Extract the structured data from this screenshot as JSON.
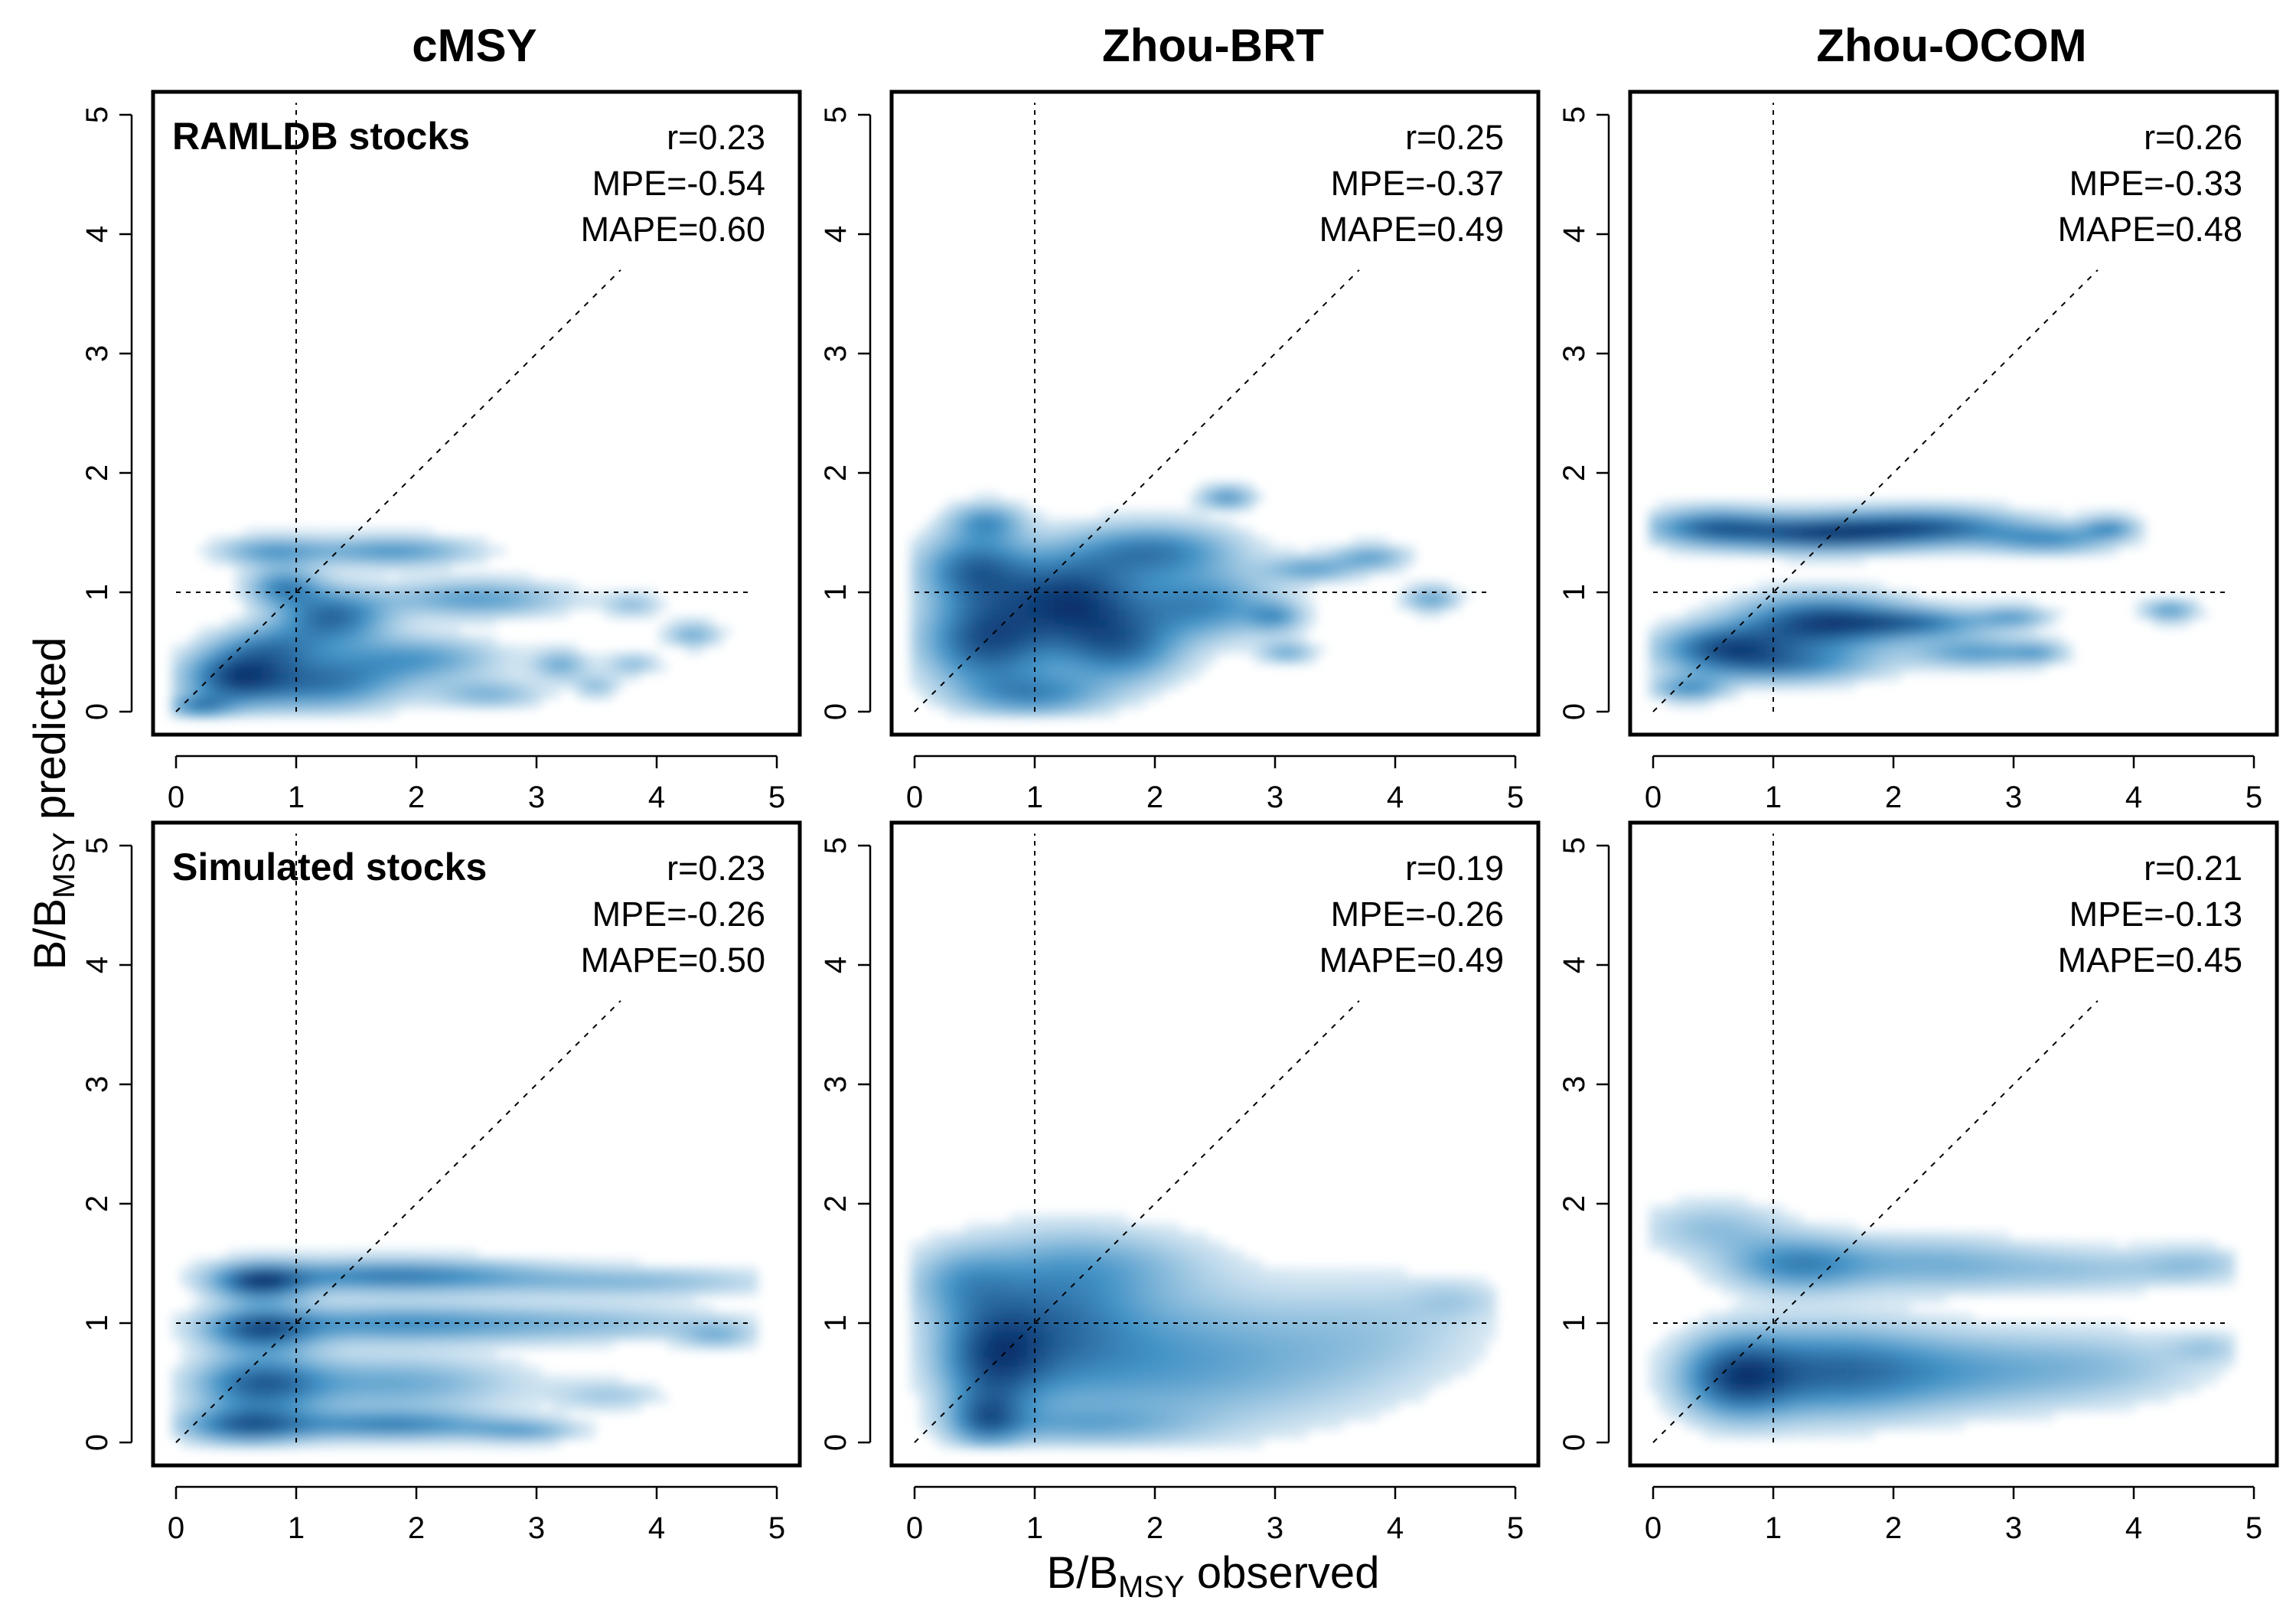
{
  "figure": {
    "y_label": {
      "main": "B/B",
      "sub": "MSY",
      "rest": " predicted"
    },
    "x_label": {
      "main": "B/B",
      "sub": "MSY",
      "rest": " observed"
    },
    "color_scale": [
      "#ffffff",
      "#08306b"
    ]
  },
  "chart_data": [
    {
      "type": "heatmap",
      "column_title": "cMSY",
      "row_label": "RAMLDB stocks",
      "xlim": [
        0,
        5
      ],
      "ylim": [
        0,
        5
      ],
      "ticks": [
        0,
        1,
        2,
        3,
        4,
        5
      ],
      "reference_lines": {
        "x": 1,
        "y": 1,
        "identity": true
      },
      "stats": [
        "r=0.23",
        "MPE=-0.54",
        "MAPE=0.60"
      ],
      "density_clusters": [
        {
          "x": 0.5,
          "y": 0.3,
          "sx": 0.28,
          "sy": 0.15,
          "w": 1.0
        },
        {
          "x": 1.2,
          "y": 0.25,
          "sx": 0.45,
          "sy": 0.15,
          "w": 0.8
        },
        {
          "x": 1.3,
          "y": 0.8,
          "sx": 0.3,
          "sy": 0.15,
          "w": 0.9
        },
        {
          "x": 0.9,
          "y": 1.05,
          "sx": 0.2,
          "sy": 0.1,
          "w": 0.7
        },
        {
          "x": 0.8,
          "y": 0.55,
          "sx": 0.3,
          "sy": 0.12,
          "w": 0.6
        },
        {
          "x": 1.8,
          "y": 1.35,
          "sx": 0.45,
          "sy": 0.08,
          "w": 0.6
        },
        {
          "x": 0.8,
          "y": 1.35,
          "sx": 0.3,
          "sy": 0.08,
          "w": 0.55
        },
        {
          "x": 2.5,
          "y": 0.95,
          "sx": 0.5,
          "sy": 0.1,
          "w": 0.55
        },
        {
          "x": 2.0,
          "y": 0.45,
          "sx": 0.45,
          "sy": 0.12,
          "w": 0.55
        },
        {
          "x": 2.6,
          "y": 0.15,
          "sx": 0.3,
          "sy": 0.08,
          "w": 0.4
        },
        {
          "x": 3.2,
          "y": 0.4,
          "sx": 0.15,
          "sy": 0.08,
          "w": 0.45
        },
        {
          "x": 3.5,
          "y": 0.22,
          "sx": 0.12,
          "sy": 0.06,
          "w": 0.35
        },
        {
          "x": 3.8,
          "y": 0.4,
          "sx": 0.15,
          "sy": 0.06,
          "w": 0.35
        },
        {
          "x": 3.8,
          "y": 0.9,
          "sx": 0.15,
          "sy": 0.06,
          "w": 0.35
        },
        {
          "x": 4.3,
          "y": 0.65,
          "sx": 0.15,
          "sy": 0.07,
          "w": 0.45
        },
        {
          "x": 0.2,
          "y": 0.05,
          "sx": 0.18,
          "sy": 0.06,
          "w": 0.7
        }
      ]
    },
    {
      "type": "heatmap",
      "column_title": "Zhou-BRT",
      "row_label": "",
      "xlim": [
        0,
        5
      ],
      "ylim": [
        0,
        5
      ],
      "ticks": [
        0,
        1,
        2,
        3,
        4,
        5
      ],
      "reference_lines": {
        "x": 1,
        "y": 1,
        "identity": true
      },
      "stats": [
        "r=0.25",
        "MPE=-0.37",
        "MAPE=0.49"
      ],
      "density_clusters": [
        {
          "x": 1.3,
          "y": 0.95,
          "sx": 0.4,
          "sy": 0.25,
          "w": 1.0
        },
        {
          "x": 0.6,
          "y": 0.6,
          "sx": 0.35,
          "sy": 0.25,
          "w": 0.9
        },
        {
          "x": 0.5,
          "y": 1.2,
          "sx": 0.3,
          "sy": 0.2,
          "w": 0.75
        },
        {
          "x": 0.6,
          "y": 1.6,
          "sx": 0.2,
          "sy": 0.1,
          "w": 0.5
        },
        {
          "x": 1.7,
          "y": 0.55,
          "sx": 0.35,
          "sy": 0.2,
          "w": 0.7
        },
        {
          "x": 2.0,
          "y": 1.35,
          "sx": 0.45,
          "sy": 0.15,
          "w": 0.65
        },
        {
          "x": 2.6,
          "y": 1.8,
          "sx": 0.15,
          "sy": 0.06,
          "w": 0.55
        },
        {
          "x": 2.4,
          "y": 0.9,
          "sx": 0.4,
          "sy": 0.18,
          "w": 0.6
        },
        {
          "x": 1.0,
          "y": 0.15,
          "sx": 0.4,
          "sy": 0.12,
          "w": 0.55
        },
        {
          "x": 3.0,
          "y": 0.8,
          "sx": 0.15,
          "sy": 0.08,
          "w": 0.45
        },
        {
          "x": 3.1,
          "y": 0.5,
          "sx": 0.15,
          "sy": 0.06,
          "w": 0.4
        },
        {
          "x": 3.3,
          "y": 1.2,
          "sx": 0.25,
          "sy": 0.07,
          "w": 0.45
        },
        {
          "x": 3.8,
          "y": 1.3,
          "sx": 0.2,
          "sy": 0.07,
          "w": 0.45
        },
        {
          "x": 4.3,
          "y": 0.95,
          "sx": 0.15,
          "sy": 0.07,
          "w": 0.45
        }
      ]
    },
    {
      "type": "heatmap",
      "column_title": "Zhou-OCOM",
      "row_label": "",
      "xlim": [
        0,
        5
      ],
      "ylim": [
        0,
        5
      ],
      "ticks": [
        0,
        1,
        2,
        3,
        4,
        5
      ],
      "reference_lines": {
        "x": 1,
        "y": 1,
        "identity": true
      },
      "stats": [
        "r=0.26",
        "MPE=-0.33",
        "MAPE=0.48"
      ],
      "density_clusters": [
        {
          "x": 1.4,
          "y": 1.5,
          "sx": 0.5,
          "sy": 0.1,
          "w": 0.95
        },
        {
          "x": 0.5,
          "y": 1.55,
          "sx": 0.35,
          "sy": 0.1,
          "w": 0.75
        },
        {
          "x": 2.3,
          "y": 1.55,
          "sx": 0.5,
          "sy": 0.1,
          "w": 0.8
        },
        {
          "x": 3.3,
          "y": 1.45,
          "sx": 0.35,
          "sy": 0.08,
          "w": 0.55
        },
        {
          "x": 3.8,
          "y": 1.55,
          "sx": 0.15,
          "sy": 0.06,
          "w": 0.55
        },
        {
          "x": 1.4,
          "y": 0.75,
          "sx": 0.45,
          "sy": 0.15,
          "w": 1.0
        },
        {
          "x": 0.6,
          "y": 0.55,
          "sx": 0.35,
          "sy": 0.12,
          "w": 0.85
        },
        {
          "x": 1.1,
          "y": 0.4,
          "sx": 0.5,
          "sy": 0.1,
          "w": 0.6
        },
        {
          "x": 2.2,
          "y": 0.75,
          "sx": 0.4,
          "sy": 0.08,
          "w": 0.65
        },
        {
          "x": 2.7,
          "y": 0.5,
          "sx": 0.35,
          "sy": 0.08,
          "w": 0.5
        },
        {
          "x": 3.0,
          "y": 0.8,
          "sx": 0.2,
          "sy": 0.06,
          "w": 0.45
        },
        {
          "x": 3.2,
          "y": 0.5,
          "sx": 0.15,
          "sy": 0.06,
          "w": 0.35
        },
        {
          "x": 0.3,
          "y": 0.2,
          "sx": 0.2,
          "sy": 0.07,
          "w": 0.55
        },
        {
          "x": 4.3,
          "y": 0.85,
          "sx": 0.15,
          "sy": 0.06,
          "w": 0.5
        }
      ]
    },
    {
      "type": "heatmap",
      "column_title": "cMSY",
      "row_label": "Simulated stocks",
      "xlim": [
        0,
        5
      ],
      "ylim": [
        0,
        5
      ],
      "ticks": [
        0,
        1,
        2,
        3,
        4,
        5
      ],
      "reference_lines": {
        "x": 1,
        "y": 1,
        "identity": true
      },
      "stats": [
        "r=0.23",
        "MPE=-0.26",
        "MAPE=0.50"
      ],
      "density_clusters": [
        {
          "x": 0.7,
          "y": 1.35,
          "sx": 0.25,
          "sy": 0.1,
          "w": 1.0
        },
        {
          "x": 1.8,
          "y": 1.4,
          "sx": 0.8,
          "sy": 0.09,
          "w": 0.75
        },
        {
          "x": 3.8,
          "y": 1.35,
          "sx": 0.8,
          "sy": 0.08,
          "w": 0.35
        },
        {
          "x": 0.7,
          "y": 0.95,
          "sx": 0.3,
          "sy": 0.12,
          "w": 0.9
        },
        {
          "x": 1.8,
          "y": 1.0,
          "sx": 0.8,
          "sy": 0.1,
          "w": 0.6
        },
        {
          "x": 3.5,
          "y": 1.0,
          "sx": 0.8,
          "sy": 0.1,
          "w": 0.3
        },
        {
          "x": 4.5,
          "y": 0.9,
          "sx": 0.2,
          "sy": 0.07,
          "w": 0.35
        },
        {
          "x": 0.7,
          "y": 0.5,
          "sx": 0.35,
          "sy": 0.15,
          "w": 0.85
        },
        {
          "x": 1.8,
          "y": 0.5,
          "sx": 0.7,
          "sy": 0.15,
          "w": 0.45
        },
        {
          "x": 0.6,
          "y": 0.15,
          "sx": 0.35,
          "sy": 0.1,
          "w": 0.9
        },
        {
          "x": 1.8,
          "y": 0.15,
          "sx": 0.6,
          "sy": 0.08,
          "w": 0.7
        },
        {
          "x": 2.9,
          "y": 0.1,
          "sx": 0.3,
          "sy": 0.06,
          "w": 0.45
        },
        {
          "x": 3.6,
          "y": 0.4,
          "sx": 0.3,
          "sy": 0.08,
          "w": 0.25
        }
      ]
    },
    {
      "type": "heatmap",
      "column_title": "Zhou-BRT",
      "row_label": "",
      "xlim": [
        0,
        5
      ],
      "ylim": [
        0,
        5
      ],
      "ticks": [
        0,
        1,
        2,
        3,
        4,
        5
      ],
      "reference_lines": {
        "x": 1,
        "y": 1,
        "identity": true
      },
      "stats": [
        "r=0.19",
        "MPE=-0.26",
        "MAPE=0.49"
      ],
      "density_clusters": [
        {
          "x": 0.65,
          "y": 0.7,
          "sx": 0.3,
          "sy": 0.3,
          "w": 1.0
        },
        {
          "x": 0.6,
          "y": 0.2,
          "sx": 0.2,
          "sy": 0.15,
          "w": 0.85
        },
        {
          "x": 1.1,
          "y": 1.0,
          "sx": 0.5,
          "sy": 0.4,
          "w": 0.8
        },
        {
          "x": 0.4,
          "y": 1.35,
          "sx": 0.3,
          "sy": 0.2,
          "w": 0.5
        },
        {
          "x": 2.0,
          "y": 0.7,
          "sx": 0.7,
          "sy": 0.4,
          "w": 0.55
        },
        {
          "x": 1.6,
          "y": 1.5,
          "sx": 0.6,
          "sy": 0.2,
          "w": 0.35
        },
        {
          "x": 3.2,
          "y": 0.7,
          "sx": 0.7,
          "sy": 0.35,
          "w": 0.3
        },
        {
          "x": 4.0,
          "y": 1.0,
          "sx": 0.6,
          "sy": 0.3,
          "w": 0.2
        },
        {
          "x": 4.5,
          "y": 1.2,
          "sx": 0.25,
          "sy": 0.1,
          "w": 0.2
        },
        {
          "x": 1.4,
          "y": 0.15,
          "sx": 0.6,
          "sy": 0.1,
          "w": 0.4
        }
      ]
    },
    {
      "type": "heatmap",
      "column_title": "Zhou-OCOM",
      "row_label": "",
      "xlim": [
        0,
        5
      ],
      "ylim": [
        0,
        5
      ],
      "ticks": [
        0,
        1,
        2,
        3,
        4,
        5
      ],
      "reference_lines": {
        "x": 1,
        "y": 1,
        "identity": true
      },
      "stats": [
        "r=0.21",
        "MPE=-0.13",
        "MAPE=0.45"
      ],
      "density_clusters": [
        {
          "x": 0.7,
          "y": 0.55,
          "sx": 0.3,
          "sy": 0.22,
          "w": 1.0
        },
        {
          "x": 1.4,
          "y": 0.6,
          "sx": 0.6,
          "sy": 0.25,
          "w": 0.8
        },
        {
          "x": 2.5,
          "y": 0.6,
          "sx": 0.8,
          "sy": 0.22,
          "w": 0.5
        },
        {
          "x": 3.8,
          "y": 0.65,
          "sx": 0.6,
          "sy": 0.2,
          "w": 0.25
        },
        {
          "x": 4.6,
          "y": 0.8,
          "sx": 0.2,
          "sy": 0.08,
          "w": 0.25
        },
        {
          "x": 1.2,
          "y": 1.5,
          "sx": 0.4,
          "sy": 0.15,
          "w": 0.75
        },
        {
          "x": 0.5,
          "y": 1.8,
          "sx": 0.4,
          "sy": 0.15,
          "w": 0.35
        },
        {
          "x": 2.3,
          "y": 1.5,
          "sx": 0.6,
          "sy": 0.15,
          "w": 0.45
        },
        {
          "x": 3.6,
          "y": 1.45,
          "sx": 0.6,
          "sy": 0.12,
          "w": 0.3
        },
        {
          "x": 4.5,
          "y": 1.5,
          "sx": 0.3,
          "sy": 0.1,
          "w": 0.3
        }
      ]
    }
  ]
}
